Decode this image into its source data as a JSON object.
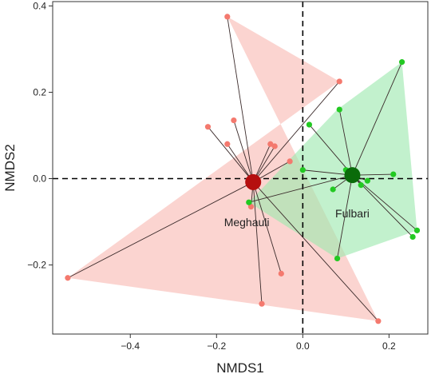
{
  "chart_data": {
    "type": "scatter",
    "xlabel": "NMDS1",
    "ylabel": "NMDS2",
    "xlim": [
      -0.58,
      0.29
    ],
    "ylim": [
      -0.36,
      0.41
    ],
    "xticks": [
      -0.4,
      -0.2,
      0.0,
      0.2
    ],
    "yticks": [
      -0.2,
      0.0,
      0.2,
      0.4
    ],
    "xtick_labels": [
      "−0.4",
      "−0.2",
      "0.0",
      "0.2"
    ],
    "ytick_labels": [
      "−0.2",
      "0.0",
      "0.2",
      "0.4"
    ],
    "grid": false,
    "reference_lines": {
      "x": 0,
      "y": 0,
      "style": "dashed"
    },
    "groups": [
      {
        "label": "Meghauli",
        "centroid": [
          -0.115,
          -0.008
        ],
        "label_position": [
          -0.13,
          -0.11
        ],
        "point_color": "#f4796e",
        "hull_color": "#f8b9b3",
        "centroid_color": "#b50f0f",
        "hull": [
          [
            -0.175,
            0.375
          ],
          [
            0.085,
            0.225
          ],
          [
            -0.545,
            -0.23
          ],
          [
            0.175,
            -0.33
          ]
        ],
        "points": [
          [
            -0.175,
            0.375
          ],
          [
            -0.22,
            0.12
          ],
          [
            -0.16,
            0.135
          ],
          [
            -0.175,
            0.08
          ],
          [
            -0.075,
            0.08
          ],
          [
            -0.03,
            0.04
          ],
          [
            -0.065,
            0.075
          ],
          [
            -0.12,
            -0.065
          ],
          [
            -0.05,
            -0.22
          ],
          [
            -0.095,
            -0.29
          ],
          [
            -0.545,
            -0.23
          ],
          [
            0.175,
            -0.33
          ],
          [
            0.085,
            0.225
          ]
        ]
      },
      {
        "label": "Fulbari",
        "centroid": [
          0.115,
          0.008
        ],
        "label_position": [
          0.115,
          -0.09
        ],
        "point_color": "#22c922",
        "hull_color": "#9de8ae",
        "centroid_color": "#0a6b0a",
        "hull": [
          [
            0.23,
            0.27
          ],
          [
            0.265,
            -0.12
          ],
          [
            0.08,
            -0.185
          ],
          [
            -0.125,
            -0.055
          ],
          [
            0.08,
            0.16
          ]
        ],
        "points": [
          [
            0.23,
            0.27
          ],
          [
            0.085,
            0.16
          ],
          [
            0.015,
            0.125
          ],
          [
            0.0,
            0.02
          ],
          [
            0.1,
            0.02
          ],
          [
            0.21,
            0.01
          ],
          [
            0.15,
            -0.005
          ],
          [
            0.135,
            -0.015
          ],
          [
            0.07,
            -0.025
          ],
          [
            0.265,
            -0.12
          ],
          [
            0.255,
            -0.135
          ],
          [
            0.08,
            -0.185
          ],
          [
            -0.125,
            -0.055
          ]
        ]
      }
    ]
  }
}
